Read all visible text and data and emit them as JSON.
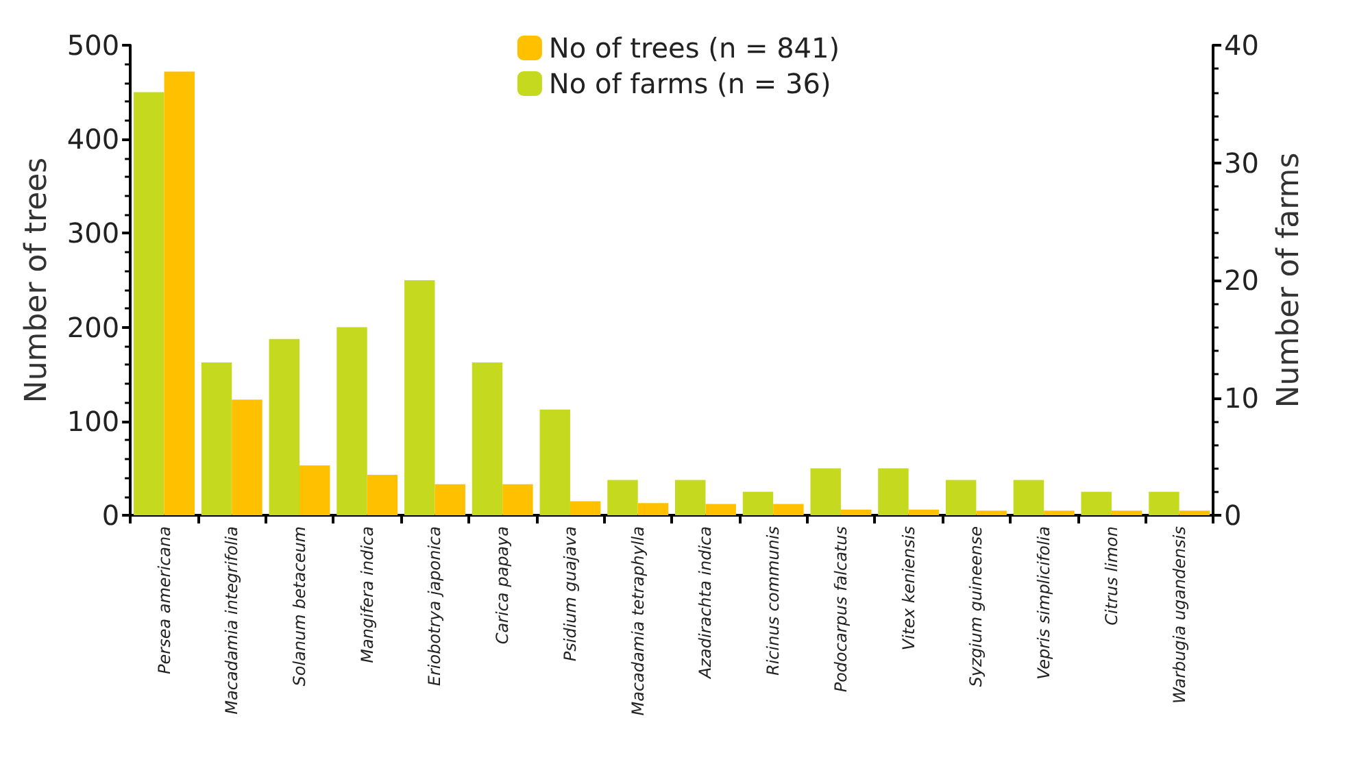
{
  "chart_data": {
    "type": "bar",
    "categories": [
      "Persea americana",
      "Macadamia integrifolia",
      "Solanum betaceum",
      "Mangifera indica",
      "Eriobotrya japonica",
      "Carica papaya",
      "Psidium guajava",
      "Macadamia tetraphylla",
      "Azadirachta indica",
      "Ricinus communis",
      "Podocarpus falcatus",
      "Vitex keniensis",
      "Syzgium guineense",
      "Vepris simplicifolia",
      "Citrus limon",
      "Warbugia ugandensis"
    ],
    "series": [
      {
        "name": "No of farms (n = 36)",
        "color": "#c5d91e",
        "axis": "y2",
        "values": [
          36,
          13,
          15,
          16,
          20,
          13,
          9,
          3,
          3,
          2,
          4,
          4,
          3,
          3,
          2,
          2
        ]
      },
      {
        "name": "No of trees (n = 841)",
        "color": "#ffc000",
        "values": [
          472,
          123,
          53,
          43,
          33,
          33,
          15,
          13,
          12,
          12,
          6,
          6,
          5,
          5,
          5,
          5
        ]
      }
    ],
    "ylabel": "Number of trees",
    "y2label": "Number of farms",
    "ylim": [
      0,
      500
    ],
    "yticks": [
      0,
      100,
      200,
      300,
      400,
      500
    ],
    "y2lim": [
      0,
      40
    ],
    "y2ticks": [
      0,
      10,
      20,
      30,
      40
    ],
    "grid": false,
    "legend": "top"
  }
}
